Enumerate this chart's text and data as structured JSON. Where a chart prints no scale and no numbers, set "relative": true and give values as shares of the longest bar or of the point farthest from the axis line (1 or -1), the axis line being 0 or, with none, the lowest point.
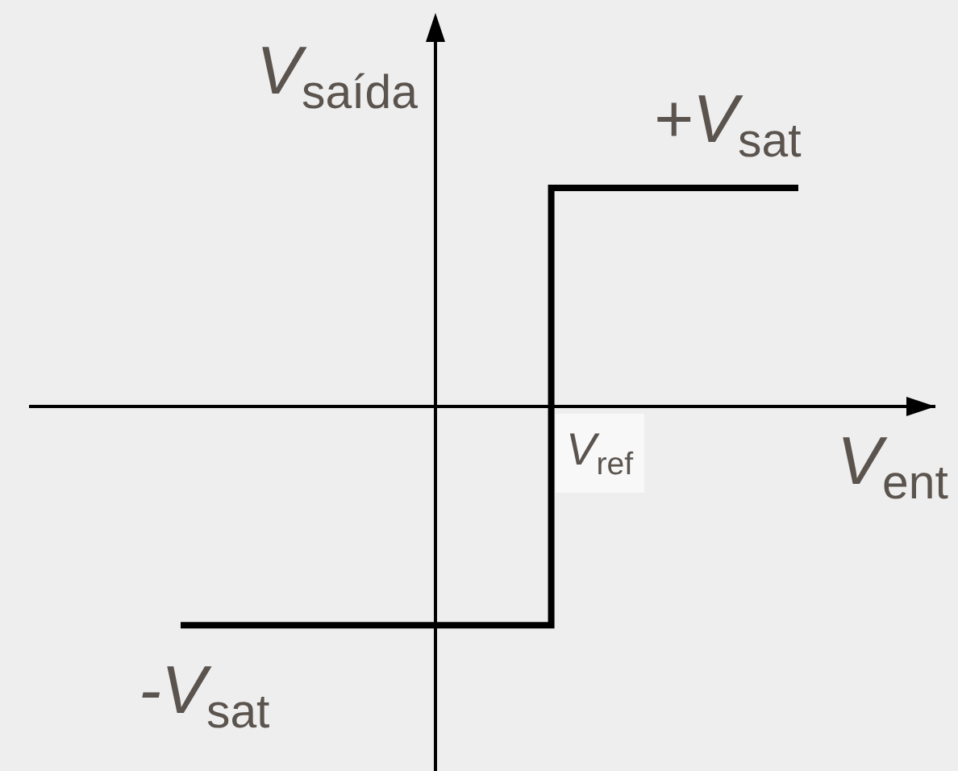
{
  "chart_data": {
    "type": "step",
    "relative": true,
    "categories": [
      null,
      null,
      null,
      null,
      null,
      null
    ],
    "values": [
      -1,
      -1,
      -1,
      1,
      1,
      1
    ],
    "color": "#000000",
    "xlabel": "V$_{ent}$",
    "ylabel": "V$_{saída}$",
    "annotations": [
      {
        "text": "+V$_{sat}$",
        "y": 1
      },
      {
        "text": "-V$_{sat}$",
        "y": -1
      },
      "V$_{ref}$"
    ],
    "legend": false,
    "marker": "none",
    "line_style": "solid"
  }
}
